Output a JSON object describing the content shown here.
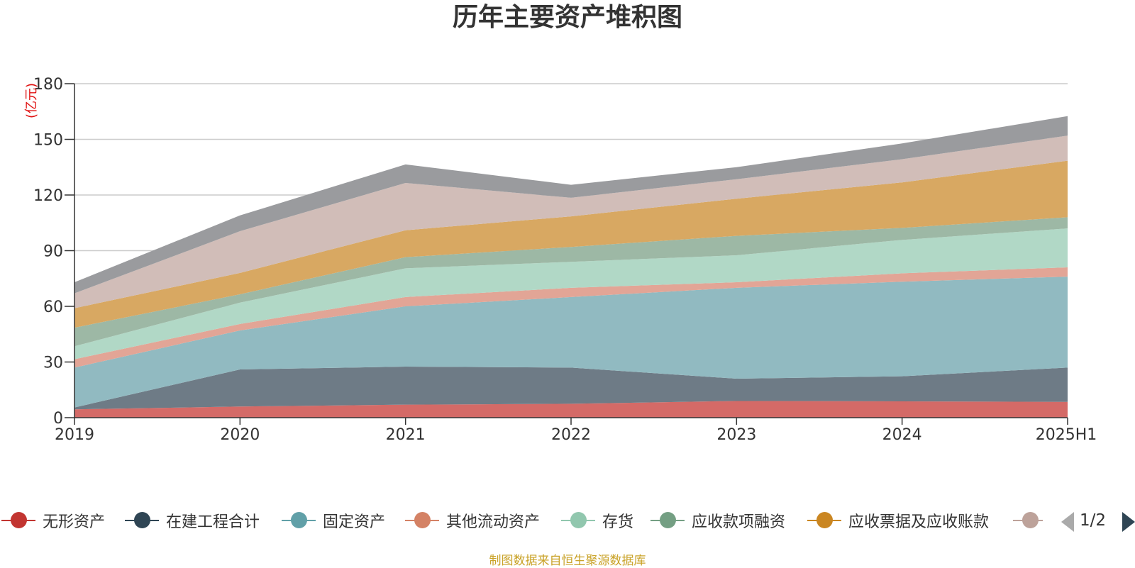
{
  "chart_data": {
    "type": "area",
    "stacked": true,
    "title": "历年主要资产堆积图",
    "y_unit": "(亿元)",
    "categories": [
      "2019",
      "2020",
      "2021",
      "2022",
      "2023",
      "2024",
      "2025H1"
    ],
    "ylim": [
      0,
      180
    ],
    "yticks": [
      0,
      30,
      60,
      90,
      120,
      150,
      180
    ],
    "grid": true,
    "legend_position": "bottom",
    "series": [
      {
        "name": "无形资产",
        "color": "#c23531",
        "fill": "#d46a67",
        "values": [
          4.5,
          6.0,
          7.0,
          7.5,
          9.0,
          8.8,
          8.5
        ]
      },
      {
        "name": "在建工程合计",
        "color": "#2f4554",
        "fill": "#6e7b86",
        "values": [
          1.0,
          20.0,
          20.5,
          19.5,
          12.0,
          13.5,
          18.5
        ]
      },
      {
        "name": "固定资产",
        "color": "#61a0a8",
        "fill": "#91bac1",
        "values": [
          21.5,
          21.0,
          32.5,
          38.0,
          49.0,
          51.0,
          49.0
        ]
      },
      {
        "name": "其他流动资产",
        "color": "#d48265",
        "fill": "#e2a596",
        "values": [
          4.5,
          3.5,
          5.0,
          5.0,
          3.0,
          4.5,
          5.0
        ]
      },
      {
        "name": "存货",
        "color": "#91c7ae",
        "fill": "#b1d8c6",
        "values": [
          7.0,
          11.5,
          15.5,
          14.0,
          14.5,
          18.0,
          21.0
        ]
      },
      {
        "name": "应收款项融资",
        "color": "#749f83",
        "fill": "#9db8a5",
        "values": [
          10.0,
          4.5,
          6.0,
          8.0,
          10.5,
          6.5,
          6.0
        ]
      },
      {
        "name": "应收票据及应收账款",
        "color": "#ca8622",
        "fill": "#d8a862",
        "values": [
          10.5,
          11.5,
          14.5,
          16.5,
          20.0,
          24.5,
          30.5
        ]
      },
      {
        "name": "",
        "color": "#bda29a",
        "fill": "#d1bdb8",
        "values": [
          8.0,
          22.5,
          25.5,
          10.0,
          10.5,
          12.5,
          13.5
        ]
      },
      {
        "name": "",
        "color": "#6e7074",
        "fill": "#9a9b9e",
        "values": [
          6.0,
          8.5,
          10.0,
          7.0,
          6.5,
          8.5,
          10.5
        ]
      }
    ]
  },
  "legend_items": [
    {
      "label": "无形资产",
      "color": "#c23531"
    },
    {
      "label": "在建工程合计",
      "color": "#2f4554"
    },
    {
      "label": "固定资产",
      "color": "#61a0a8"
    },
    {
      "label": "其他流动资产",
      "color": "#d48265"
    },
    {
      "label": "存货",
      "color": "#91c7ae"
    },
    {
      "label": "应收款项融资",
      "color": "#749f83"
    },
    {
      "label": "应收票据及应收账款",
      "color": "#ca8622"
    },
    {
      "label": "",
      "color": "#bda29a"
    }
  ],
  "pager": {
    "text": "1/2",
    "prev_icon": "triangle-left",
    "next_icon": "triangle-right"
  },
  "source_note": "制图数据来自恒生聚源数据库"
}
